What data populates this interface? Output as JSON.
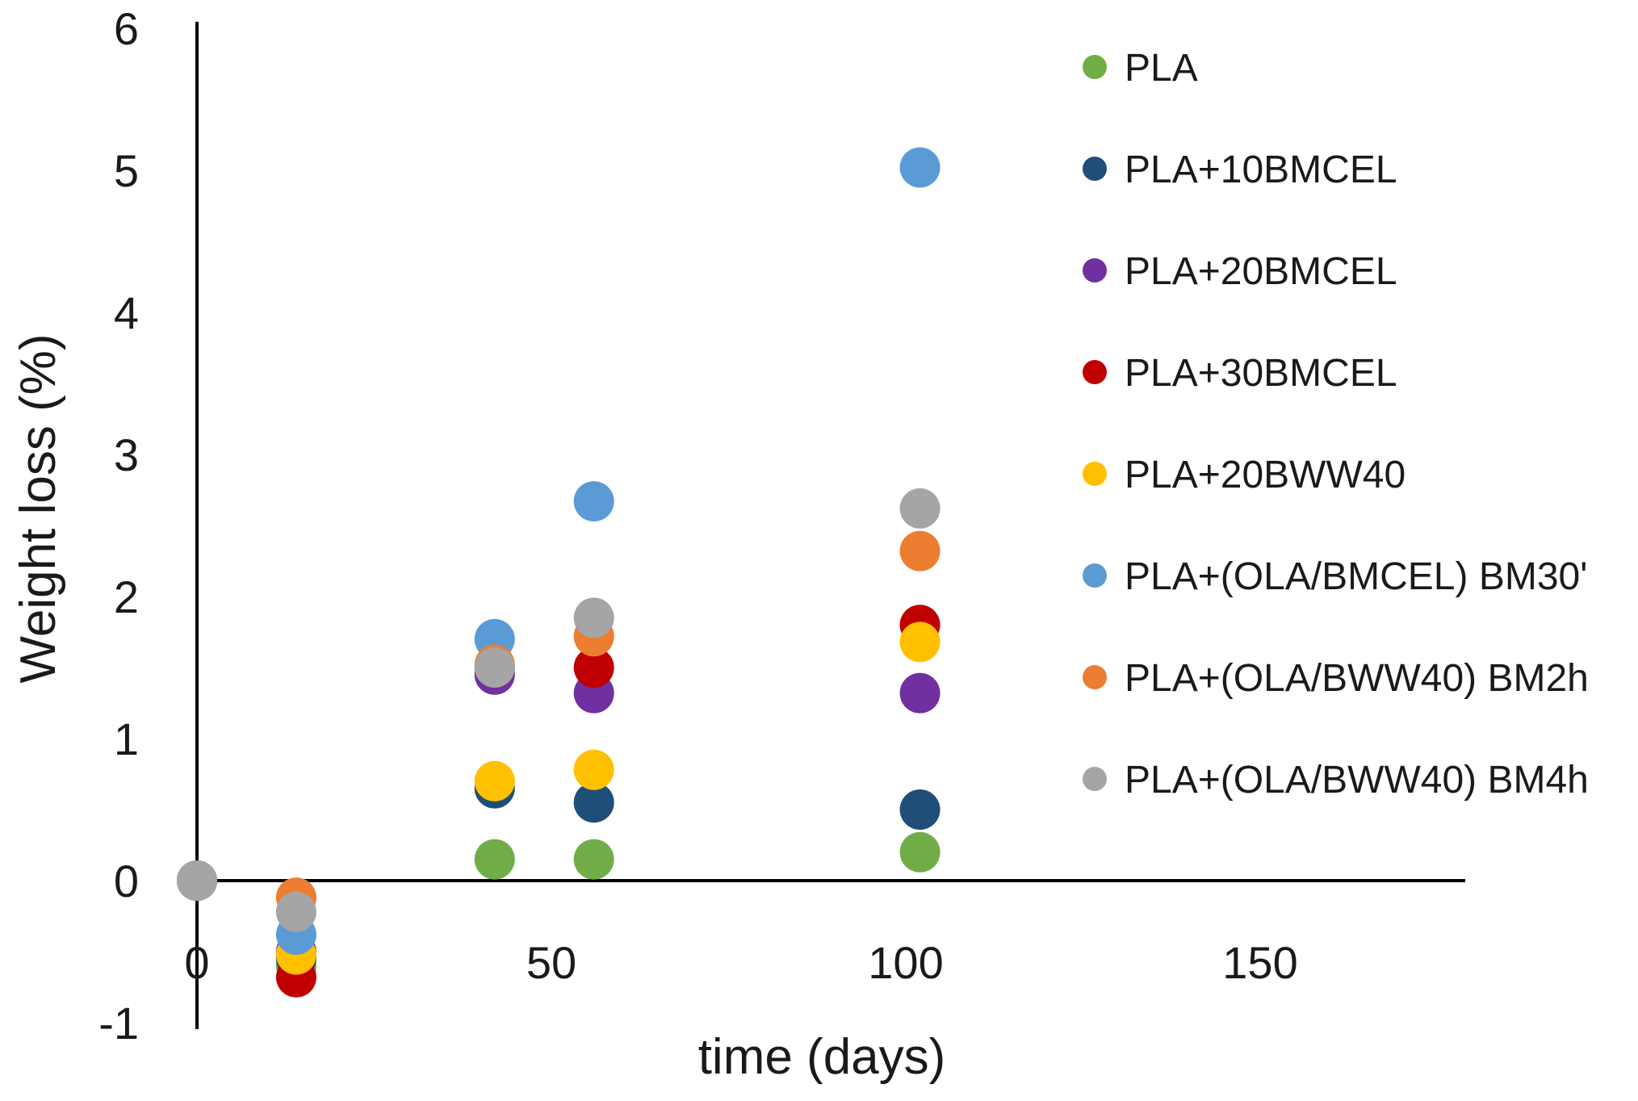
{
  "chart_data": {
    "type": "scatter",
    "title": "",
    "xlabel": "time (days)",
    "ylabel": "Weight loss (%)",
    "xlim": [
      0,
      180
    ],
    "ylim": [
      -1,
      6
    ],
    "xticks": [
      0,
      50,
      100,
      150
    ],
    "yticks": [
      -1,
      0,
      1,
      2,
      3,
      4,
      5,
      6
    ],
    "grid": false,
    "legend_position": "right",
    "series": [
      {
        "name": "PLA",
        "color": "#70ad47",
        "points": [
          [
            0,
            0
          ],
          [
            14,
            -0.6
          ],
          [
            42,
            0.15
          ],
          [
            56,
            0.15
          ],
          [
            102,
            0.2
          ]
        ]
      },
      {
        "name": "PLA+10BMCEL",
        "color": "#1f4e79",
        "points": [
          [
            0,
            0
          ],
          [
            14,
            -0.55
          ],
          [
            42,
            0.65
          ],
          [
            56,
            0.55
          ],
          [
            102,
            0.5
          ]
        ]
      },
      {
        "name": "PLA+20BMCEL",
        "color": "#7030a0",
        "points": [
          [
            0,
            0
          ],
          [
            14,
            -0.5
          ],
          [
            42,
            1.45
          ],
          [
            56,
            1.32
          ],
          [
            102,
            1.32
          ]
        ]
      },
      {
        "name": "PLA+30BMCEL",
        "color": "#c00000",
        "points": [
          [
            0,
            0
          ],
          [
            14,
            -0.68
          ],
          [
            42,
            1.5
          ],
          [
            56,
            1.5
          ],
          [
            102,
            1.8
          ]
        ]
      },
      {
        "name": "PLA+20BWW40",
        "color": "#ffc000",
        "points": [
          [
            0,
            0
          ],
          [
            14,
            -0.52
          ],
          [
            42,
            0.7
          ],
          [
            56,
            0.78
          ],
          [
            102,
            1.68
          ]
        ]
      },
      {
        "name": "PLA+(OLA/BMCEL) BM30'",
        "color": "#5b9bd5",
        "points": [
          [
            0,
            0
          ],
          [
            14,
            -0.38
          ],
          [
            42,
            1.7
          ],
          [
            56,
            2.67
          ],
          [
            102,
            5.02
          ]
        ]
      },
      {
        "name": "PLA+(OLA/BWW40) BM2h",
        "color": "#ed7d31",
        "points": [
          [
            0,
            0
          ],
          [
            14,
            -0.12
          ],
          [
            42,
            1.52
          ],
          [
            56,
            1.72
          ],
          [
            102,
            2.32
          ]
        ]
      },
      {
        "name": "PLA+(OLA/BWW40) BM4h",
        "color": "#a5a5a5",
        "points": [
          [
            0,
            0
          ],
          [
            14,
            -0.22
          ],
          [
            42,
            1.5
          ],
          [
            56,
            1.85
          ],
          [
            102,
            2.62
          ]
        ]
      }
    ]
  }
}
